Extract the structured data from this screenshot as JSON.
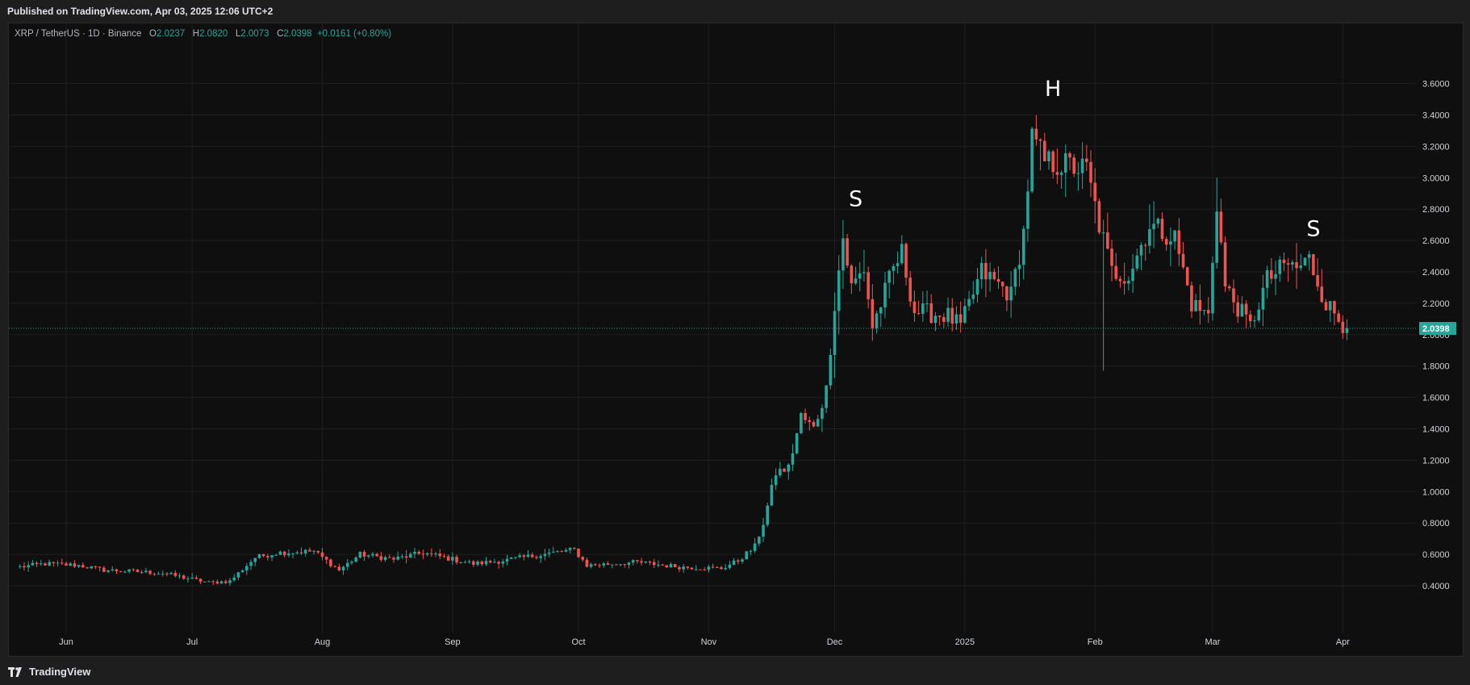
{
  "header": {
    "published": "Published on TradingView.com, Apr 03, 2025 12:06 UTC+2"
  },
  "legend": {
    "symbol": "XRP / TetherUS · 1D · Binance",
    "o_label": "O",
    "o": "2.0237",
    "h_label": "H",
    "h": "2.0820",
    "l_label": "L",
    "l": "2.0073",
    "c_label": "C",
    "c": "2.0398",
    "change": "+0.0161 (+0.80%)"
  },
  "footer": {
    "brand": "TradingView"
  },
  "colors": {
    "up": "#26a69a",
    "down": "#ef5350",
    "last_price": "#26a69a",
    "grid": "#1f1f1f",
    "axis_text": "#d1d4dc"
  },
  "chart_data": {
    "type": "candlestick",
    "ylim": [
      0.35,
      3.65
    ],
    "y_ticks": [
      "0.4000",
      "0.6000",
      "0.8000",
      "1.0000",
      "1.2000",
      "1.4000",
      "1.6000",
      "1.8000",
      "2.0000",
      "2.2000",
      "2.4000",
      "2.6000",
      "2.8000",
      "3.0000",
      "3.2000",
      "3.4000",
      "3.6000"
    ],
    "x_ticks": [
      "Jun",
      "Jul",
      "Aug",
      "Sep",
      "Oct",
      "Nov",
      "Dec",
      "2025",
      "Feb",
      "Mar",
      "Apr"
    ],
    "last_price": "2.0398",
    "grid": true,
    "annotations": [
      {
        "text": "S",
        "x": "2024-12-06",
        "y": 2.82
      },
      {
        "text": "H",
        "x": "2025-01-22",
        "y": 3.52
      },
      {
        "text": "S",
        "x": "2025-03-25",
        "y": 2.63
      }
    ],
    "keypoints": [
      [
        "2024-05-21",
        0.52
      ],
      [
        "2024-05-27",
        0.54
      ],
      [
        "2024-06-04",
        0.53
      ],
      [
        "2024-06-10",
        0.5
      ],
      [
        "2024-06-18",
        0.49
      ],
      [
        "2024-06-24",
        0.48
      ],
      [
        "2024-07-05",
        0.42
      ],
      [
        "2024-07-10",
        0.43
      ],
      [
        "2024-07-16",
        0.58
      ],
      [
        "2024-07-21",
        0.61
      ],
      [
        "2024-07-30",
        0.62
      ],
      [
        "2024-08-05",
        0.5
      ],
      [
        "2024-08-10",
        0.6
      ],
      [
        "2024-08-18",
        0.57
      ],
      [
        "2024-08-25",
        0.61
      ],
      [
        "2024-09-06",
        0.54
      ],
      [
        "2024-09-13",
        0.56
      ],
      [
        "2024-09-20",
        0.59
      ],
      [
        "2024-09-30",
        0.63
      ],
      [
        "2024-10-03",
        0.53
      ],
      [
        "2024-10-15",
        0.55
      ],
      [
        "2024-10-25",
        0.52
      ],
      [
        "2024-11-04",
        0.51
      ],
      [
        "2024-11-08",
        0.56
      ],
      [
        "2024-11-12",
        0.65
      ],
      [
        "2024-11-14",
        0.8
      ],
      [
        "2024-11-17",
        1.12
      ],
      [
        "2024-11-20",
        1.15
      ],
      [
        "2024-11-23",
        1.48
      ],
      [
        "2024-11-26",
        1.4
      ],
      [
        "2024-11-29",
        1.65
      ],
      [
        "2024-12-01",
        2.2
      ],
      [
        "2024-12-03",
        2.62
      ],
      [
        "2024-12-05",
        2.3
      ],
      [
        "2024-12-08",
        2.42
      ],
      [
        "2024-12-10",
        2.05
      ],
      [
        "2024-12-15",
        2.42
      ],
      [
        "2024-12-17",
        2.52
      ],
      [
        "2024-12-20",
        2.15
      ],
      [
        "2024-12-28",
        2.12
      ],
      [
        "2024-12-31",
        2.05
      ],
      [
        "2025-01-05",
        2.4
      ],
      [
        "2025-01-10",
        2.3
      ],
      [
        "2025-01-12",
        2.25
      ],
      [
        "2025-01-15",
        2.65
      ],
      [
        "2025-01-17",
        3.25
      ],
      [
        "2025-01-20",
        3.1
      ],
      [
        "2025-01-25",
        3.08
      ],
      [
        "2025-01-30",
        3.05
      ],
      [
        "2025-02-02",
        2.7
      ],
      [
        "2025-02-05",
        2.4
      ],
      [
        "2025-02-09",
        2.38
      ],
      [
        "2025-02-14",
        2.7
      ],
      [
        "2025-02-20",
        2.62
      ],
      [
        "2025-02-24",
        2.2
      ],
      [
        "2025-02-28",
        2.12
      ],
      [
        "2025-03-02",
        2.85
      ],
      [
        "2025-03-04",
        2.3
      ],
      [
        "2025-03-10",
        2.05
      ],
      [
        "2025-03-14",
        2.35
      ],
      [
        "2025-03-19",
        2.45
      ],
      [
        "2025-03-21",
        2.42
      ],
      [
        "2025-03-24",
        2.48
      ],
      [
        "2025-03-28",
        2.2
      ],
      [
        "2025-04-02",
        2.04
      ]
    ]
  }
}
